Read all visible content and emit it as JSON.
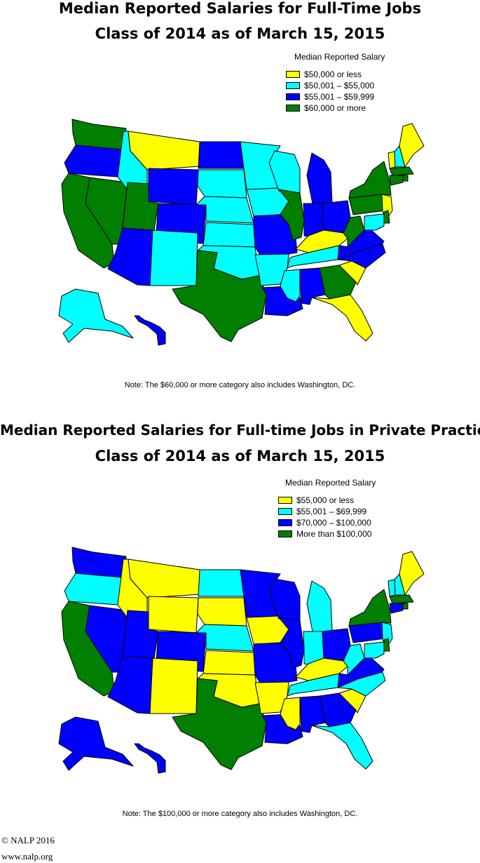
{
  "colors": {
    "yellow": "#ffff00",
    "cyan": "#00ffff",
    "blue": "#0000ff",
    "green": "#007f00"
  },
  "maps": [
    {
      "title_line1": "Median Reported Salaries for Full-Time Jobs",
      "title_line2": "Class of 2014 as of March 15, 2015",
      "legend": {
        "title": "Median Reported Salary",
        "items": [
          {
            "label": "$50,000  or  less",
            "color": "yellow"
          },
          {
            "label": "$50,001  –  $55,000",
            "color": "cyan"
          },
          {
            "label": "$55,001  –  $59,999",
            "color": "blue"
          },
          {
            "label": "$60,000  or  more",
            "color": "green"
          }
        ]
      },
      "states": {
        "WA": "green",
        "OR": "blue",
        "CA": "green",
        "NV": "green",
        "ID": "cyan",
        "MT": "yellow",
        "WY": "blue",
        "UT": "green",
        "AZ": "blue",
        "CO": "blue",
        "NM": "cyan",
        "ND": "blue",
        "SD": "cyan",
        "NE": "cyan",
        "KS": "cyan",
        "OK": "cyan",
        "TX": "green",
        "MN": "cyan",
        "IA": "cyan",
        "MO": "blue",
        "AR": "cyan",
        "LA": "blue",
        "WI": "cyan",
        "IL": "green",
        "MI": "blue",
        "IN": "blue",
        "OH": "blue",
        "KY": "yellow",
        "TN": "cyan",
        "MS": "cyan",
        "AL": "blue",
        "GA": "green",
        "FL": "yellow",
        "SC": "yellow",
        "NC": "blue",
        "VA": "blue",
        "WV": "green",
        "PA": "green",
        "NY": "green",
        "VT": "yellow",
        "NH": "cyan",
        "ME": "yellow",
        "MA": "green",
        "RI": "green",
        "CT": "green",
        "NJ": "yellow",
        "DE": "green",
        "MD": "cyan",
        "AK": "cyan",
        "HI": "blue"
      },
      "note": "Note:  The  $60,000  or  more  category  also  includes  Washington,  DC."
    },
    {
      "title_line1": "Median Reported Salaries for Full-time Jobs in Private Practice",
      "title_line2": "Class of 2014 as of March 15, 2015",
      "legend": {
        "title": "Median Reported Salary",
        "items": [
          {
            "label": "$55,000  or  less",
            "color": "yellow"
          },
          {
            "label": "$55,001  –  $69,999",
            "color": "cyan"
          },
          {
            "label": "$70,000  –  $100,000",
            "color": "blue"
          },
          {
            "label": "More  than  $100,000",
            "color": "green"
          }
        ]
      },
      "states": {
        "WA": "blue",
        "OR": "cyan",
        "CA": "green",
        "NV": "blue",
        "ID": "yellow",
        "MT": "yellow",
        "WY": "yellow",
        "UT": "blue",
        "AZ": "blue",
        "CO": "blue",
        "NM": "yellow",
        "ND": "cyan",
        "SD": "yellow",
        "NE": "cyan",
        "KS": "yellow",
        "OK": "yellow",
        "TX": "green",
        "MN": "blue",
        "IA": "yellow",
        "MO": "blue",
        "AR": "yellow",
        "LA": "blue",
        "WI": "blue",
        "IL": "blue",
        "MI": "cyan",
        "IN": "cyan",
        "OH": "blue",
        "KY": "yellow",
        "TN": "cyan",
        "MS": "yellow",
        "AL": "blue",
        "GA": "blue",
        "FL": "cyan",
        "SC": "yellow",
        "NC": "cyan",
        "VA": "blue",
        "WV": "cyan",
        "PA": "blue",
        "NY": "green",
        "VT": "cyan",
        "NH": "cyan",
        "ME": "yellow",
        "MA": "green",
        "RI": "green",
        "CT": "blue",
        "NJ": "cyan",
        "DE": "green",
        "MD": "cyan",
        "AK": "blue",
        "HI": "blue"
      },
      "note": "Note:  The  $100,000  or  more  category  also  includes  Washington,  DC."
    }
  ],
  "footer": {
    "copyright": "© NALP 2016",
    "website": "www.nalp.org"
  }
}
